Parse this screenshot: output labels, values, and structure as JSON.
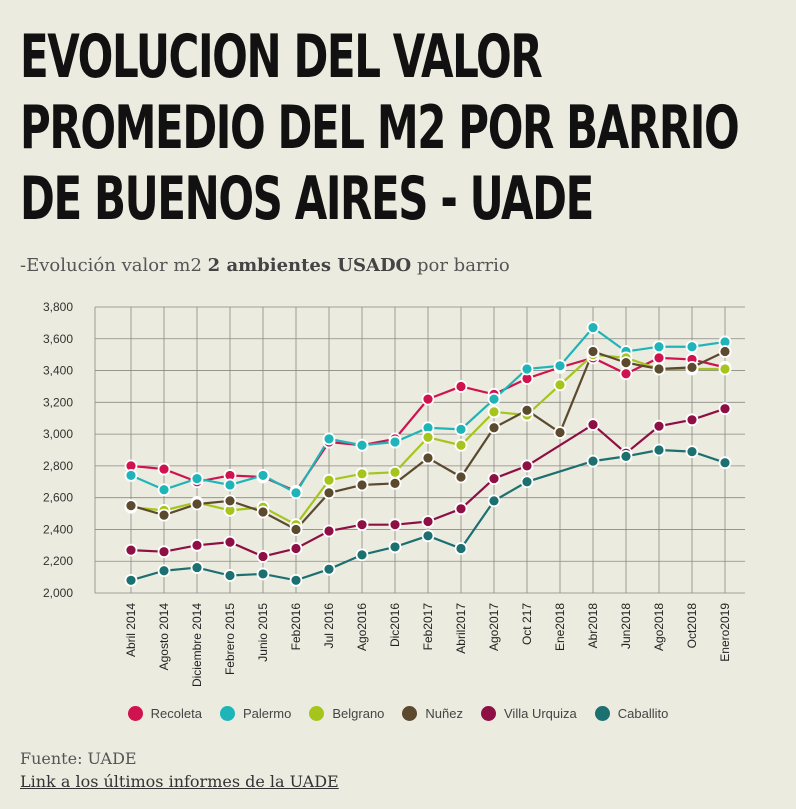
{
  "header": {
    "title": "EVOLUCION DEL VALOR PROMEDIO DEL M2 POR BARRIO DE BUENOS AIRES - UADE",
    "subtitle_prefix": "-Evolución valor m2",
    "subtitle_bold": "2 ambientes USADO",
    "subtitle_suffix": "por barrio"
  },
  "footer": {
    "source": "Fuente: UADE",
    "link": "Link a los últimos informes de la UADE"
  },
  "chart_data": {
    "type": "line",
    "title": "",
    "xlabel": "",
    "ylabel": "",
    "ylim": [
      2000,
      3800
    ],
    "yticks": [
      2000,
      2200,
      2400,
      2600,
      2800,
      3000,
      3200,
      3400,
      3600,
      3800
    ],
    "ytick_labels": [
      "2,000",
      "2,200",
      "2,400",
      "2,600",
      "2,800",
      "3,000",
      "3,200",
      "3,400",
      "3,600",
      "3,800"
    ],
    "grid": true,
    "legend_position": "bottom",
    "categories": [
      "Abril 2014",
      "Agosto 2014",
      "Diciembre 2014",
      "Febrero 2015",
      "Junio 2015",
      "Feb2016",
      "Jul 2016",
      "Ago2016",
      "Dic2016",
      "Feb2017",
      "Abril2017",
      "Ago2017",
      "Oct 217",
      "Ene2018",
      "Abr2018",
      "Jun2018",
      "Ago2018",
      "Oct2018",
      "Enero2019"
    ],
    "series": [
      {
        "name": "Recoleta",
        "color": "#d0124e",
        "values": [
          2800,
          2780,
          2700,
          2740,
          2730,
          2640,
          2950,
          2930,
          2970,
          3220,
          3300,
          3250,
          3350,
          3420,
          3480,
          3380,
          3480,
          3470,
          3420
        ]
      },
      {
        "name": "Palermo",
        "color": "#1fb5b8",
        "values": [
          2740,
          2650,
          2720,
          2680,
          2740,
          2630,
          2970,
          2930,
          2950,
          3040,
          3030,
          3220,
          3410,
          3430,
          3670,
          3520,
          3550,
          3550,
          3580
        ]
      },
      {
        "name": "Belgrano",
        "color": "#a5c51d",
        "values": [
          2540,
          2520,
          2570,
          2520,
          2540,
          2430,
          2710,
          2750,
          2760,
          2980,
          2930,
          3140,
          3120,
          3310,
          3500,
          3480,
          3410,
          3410,
          3410
        ]
      },
      {
        "name": "Nuñez",
        "color": "#5b4a2e",
        "values": [
          2550,
          2490,
          2560,
          2580,
          2510,
          2400,
          2630,
          2680,
          2690,
          2850,
          2730,
          3040,
          3150,
          3010,
          3520,
          3450,
          3410,
          3420,
          3520
        ]
      },
      {
        "name": "Villa Urquiza",
        "color": "#8e0f44",
        "values": [
          2270,
          2260,
          2300,
          2320,
          2230,
          2280,
          2390,
          2430,
          2430,
          2450,
          2530,
          2720,
          2800,
          null,
          3060,
          2880,
          3050,
          3090,
          3160
        ]
      },
      {
        "name": "Caballito",
        "color": "#1c7070",
        "values": [
          2080,
          2140,
          2160,
          2110,
          2120,
          2080,
          2150,
          2240,
          2290,
          2360,
          2280,
          2580,
          2700,
          null,
          2830,
          2860,
          2900,
          2890,
          2820
        ]
      }
    ]
  }
}
